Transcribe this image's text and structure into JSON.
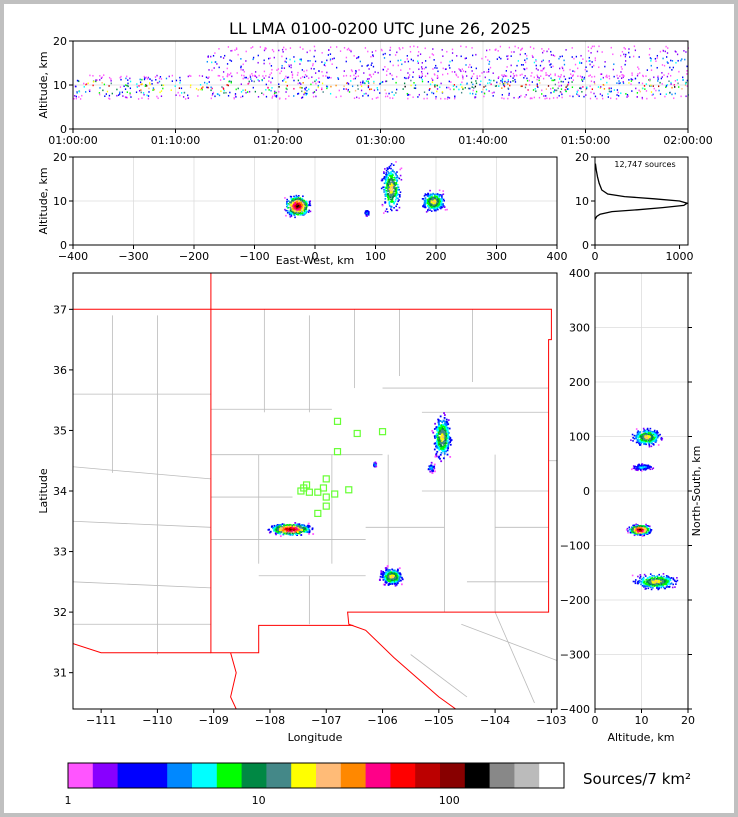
{
  "title": "LL LMA 0100-0200 UTC June 26, 2025",
  "colorbar_label": "Sources/7 km²",
  "colors": {
    "frame": "#c0c0c0",
    "state_border": "#ff0000",
    "county_border": "#bbbbbb",
    "station": "#66ff33",
    "profile_line": "#000000"
  },
  "chart_data": [
    {
      "id": "time-height",
      "type": "scatter",
      "title": "LL LMA 0100-0200 UTC June 26, 2025",
      "xlabel": "",
      "ylabel": "Altitude, km",
      "x_ticks": [
        "01:00:00",
        "01:10:00",
        "01:20:00",
        "01:30:00",
        "01:40:00",
        "01:50:00",
        "02:00:00"
      ],
      "xlim_minutes": [
        0,
        60
      ],
      "ylim": [
        0,
        20
      ],
      "y_ticks": [
        0,
        10,
        20
      ],
      "bands": [
        {
          "t0": 0,
          "t1": 60,
          "alt_min": 7,
          "alt_max": 12.5,
          "density": "high"
        },
        {
          "t0": 13,
          "t1": 60,
          "alt_min": 12,
          "alt_max": 19,
          "density": "medium"
        }
      ]
    },
    {
      "id": "ew-altitude",
      "type": "heatmap",
      "xlabel": "East-West, km",
      "ylabel": "Altitude, km",
      "xlim": [
        -400,
        400
      ],
      "x_ticks": [
        -400,
        -300,
        -200,
        -100,
        0,
        100,
        200,
        300,
        400
      ],
      "ylim": [
        0,
        20
      ],
      "y_ticks": [
        0,
        10,
        20
      ],
      "clusters": [
        {
          "x_center": -30,
          "x_halfwidth": 25,
          "alt_center": 9,
          "alt_halfheight": 3,
          "peak": "high"
        },
        {
          "x_center": 125,
          "x_halfwidth": 20,
          "alt_center": 13,
          "alt_halfheight": 7,
          "peak": "medium"
        },
        {
          "x_center": 195,
          "x_halfwidth": 25,
          "alt_center": 10,
          "alt_halfheight": 3,
          "peak": "medium"
        },
        {
          "x_center": 85,
          "x_halfwidth": 6,
          "alt_center": 7.5,
          "alt_halfheight": 1,
          "peak": "low"
        }
      ]
    },
    {
      "id": "altitude-histogram",
      "type": "line",
      "annotation": "12,747 sources",
      "xlim": [
        0,
        1100
      ],
      "x_ticks": [
        0,
        1000
      ],
      "ylim": [
        0,
        20
      ],
      "y_ticks": [
        0,
        10,
        20
      ],
      "points": [
        [
          0,
          5.8
        ],
        [
          20,
          6.5
        ],
        [
          60,
          7
        ],
        [
          200,
          7.6
        ],
        [
          500,
          8
        ],
        [
          800,
          8.5
        ],
        [
          1050,
          9
        ],
        [
          1090,
          9.5
        ],
        [
          1000,
          10
        ],
        [
          700,
          10.5
        ],
        [
          350,
          11
        ],
        [
          150,
          11.6
        ],
        [
          80,
          12.5
        ],
        [
          50,
          14
        ],
        [
          30,
          15.5
        ],
        [
          15,
          17
        ],
        [
          5,
          18.5
        ]
      ]
    },
    {
      "id": "plan-view",
      "type": "heatmap",
      "xlabel": "Longitude",
      "ylabel": "Latitude",
      "xlim": [
        -111.5,
        -102.9
      ],
      "ylim": [
        30.4,
        37.6
      ],
      "x_ticks": [
        -111,
        -110,
        -109,
        -108,
        -107,
        -106,
        -105,
        -104,
        -103
      ],
      "y_ticks": [
        31,
        32,
        33,
        34,
        35,
        36,
        37
      ],
      "clusters": [
        {
          "lon": -107.65,
          "lat": 33.38,
          "lon_half": 0.45,
          "lat_half": 0.12,
          "peak": "high"
        },
        {
          "lon": -105.85,
          "lat": 32.6,
          "lon_half": 0.25,
          "lat_half": 0.18,
          "peak": "medium"
        },
        {
          "lon": -104.95,
          "lat": 34.9,
          "lon_half": 0.2,
          "lat_half": 0.45,
          "peak": "medium"
        },
        {
          "lon": -105.15,
          "lat": 34.4,
          "lon_half": 0.08,
          "lat_half": 0.1,
          "peak": "low"
        },
        {
          "lon": -106.15,
          "lat": 34.45,
          "lon_half": 0.03,
          "lat_half": 0.05,
          "peak": "low"
        }
      ],
      "stations": [
        [
          -106.8,
          35.15
        ],
        [
          -106.45,
          34.95
        ],
        [
          -106.0,
          34.98
        ],
        [
          -106.8,
          34.65
        ],
        [
          -107.0,
          34.2
        ],
        [
          -107.05,
          34.05
        ],
        [
          -107.35,
          34.1
        ],
        [
          -107.45,
          34.0
        ],
        [
          -107.3,
          33.98
        ],
        [
          -107.15,
          33.98
        ],
        [
          -107.0,
          33.9
        ],
        [
          -106.85,
          33.95
        ],
        [
          -106.6,
          34.02
        ],
        [
          -107.0,
          33.75
        ],
        [
          -107.15,
          33.63
        ],
        [
          -107.4,
          34.05
        ]
      ]
    },
    {
      "id": "ns-altitude",
      "type": "heatmap",
      "xlabel": "Altitude, km",
      "ylabel": "North-South, km",
      "xlim": [
        0,
        20
      ],
      "x_ticks": [
        0,
        10,
        20
      ],
      "ylim": [
        -400,
        400
      ],
      "y_ticks": [
        -400,
        -300,
        -200,
        -100,
        0,
        100,
        200,
        300,
        400
      ],
      "clusters": [
        {
          "ns": 100,
          "ns_half": 20,
          "alt_center": 11,
          "alt_half": 4,
          "peak": "medium"
        },
        {
          "ns": 45,
          "ns_half": 8,
          "alt_center": 10,
          "alt_half": 3,
          "peak": "low"
        },
        {
          "ns": -70,
          "ns_half": 12,
          "alt_center": 9.5,
          "alt_half": 3,
          "peak": "high"
        },
        {
          "ns": -165,
          "ns_half": 18,
          "alt_center": 13,
          "alt_half": 6,
          "peak": "medium"
        }
      ]
    },
    {
      "id": "colorbar",
      "type": "bar",
      "label": "Sources/7 km²",
      "scale": "log",
      "range": [
        1,
        400
      ],
      "tick_labels": [
        "1",
        "10",
        "100"
      ],
      "tick_values": [
        1,
        10,
        100
      ],
      "colors": [
        "#ff55ff",
        "#8800ff",
        "#0000ff",
        "#0000ff",
        "#0088ff",
        "#00ffff",
        "#00ff00",
        "#008844",
        "#448888",
        "#ffff00",
        "#ffbb77",
        "#ff8800",
        "#ff0088",
        "#ff0000",
        "#bb0000",
        "#880000",
        "#000000",
        "#888888",
        "#bbbbbb",
        "#ffffff"
      ]
    }
  ]
}
